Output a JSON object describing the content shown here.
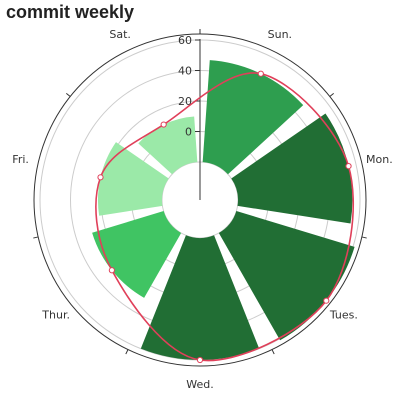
{
  "title": "commit weekly",
  "chart_data": {
    "type": "bar",
    "polar": true,
    "title": "commit weekly",
    "categories": [
      "Sun.",
      "Mon.",
      "Tues.",
      "Wed.",
      "Thur.",
      "Fri.",
      "Sat."
    ],
    "values": [
      47,
      55,
      61,
      60,
      29,
      22,
      10
    ],
    "bar_colors": [
      "#2e9e4f",
      "#216e34",
      "#216e34",
      "#216e34",
      "#40c463",
      "#9be9a8",
      "#9be9a8"
    ],
    "radius_axis": {
      "min": -20,
      "max": 60,
      "ticks": [
        0,
        20,
        40,
        60
      ]
    },
    "smoothed_line": {
      "color": "#e0405a",
      "values": [
        47,
        55,
        61,
        60,
        29,
        22,
        10
      ]
    },
    "grid": true
  }
}
